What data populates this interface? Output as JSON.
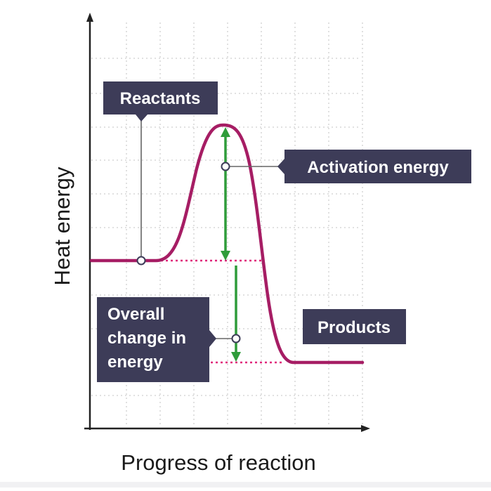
{
  "axes": {
    "y_label": "Heat energy",
    "x_label": "Progress of reaction"
  },
  "labels": {
    "reactants": "Reactants",
    "activation_energy": "Activation energy",
    "products": "Products",
    "overall_change_lines": [
      "Overall",
      "change in",
      "energy"
    ]
  },
  "colors": {
    "curve": "#a61d64",
    "arrow": "#2f9c3a",
    "callout_bg": "#3d3c58",
    "callout_text": "#ffffff",
    "dotted_reference": "#e0247a",
    "grid": "#cfcfcf",
    "axis": "#222222"
  }
}
